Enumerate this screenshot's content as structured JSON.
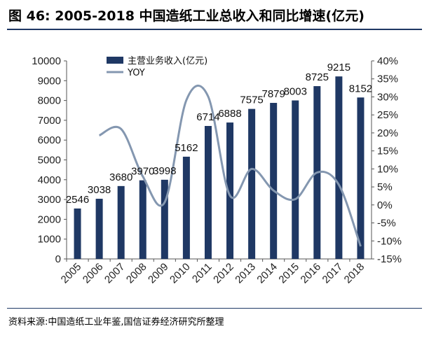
{
  "page": {
    "title": "图 46: 2005-2018 中国造纸工业总收入和同比增速(亿元)",
    "source": "资料来源:中国造纸工业年鉴,国信证券经济研究所整理"
  },
  "chart_data": {
    "type": "bar",
    "title": "图 46: 2005-2018 中国造纸工业总收入和同比增速(亿元)",
    "categories": [
      "2005",
      "2006",
      "2007",
      "2008",
      "2009",
      "2010",
      "2011",
      "2012",
      "2013",
      "2014",
      "2015",
      "2016",
      "2017",
      "2018"
    ],
    "series": [
      {
        "name": "主营业务收入(亿元)",
        "type": "bar",
        "axis": "left",
        "values": [
          2546,
          3038,
          3680,
          3970,
          3998,
          5162,
          6714,
          6888,
          7575,
          7879,
          8003,
          8725,
          9215,
          8152
        ],
        "color": "#1f3864"
      },
      {
        "name": "YOY",
        "type": "line",
        "axis": "right",
        "values": [
          null,
          19.3,
          21.1,
          7.9,
          0.7,
          29.1,
          30.1,
          2.6,
          10.0,
          4.0,
          1.6,
          9.0,
          5.6,
          -11.5
        ],
        "color": "#8497b0"
      }
    ],
    "y_left": {
      "ylim": [
        0,
        10000
      ],
      "ticks": [
        "0",
        "1000",
        "2000",
        "3000",
        "4000",
        "5000",
        "6000",
        "7000",
        "8000",
        "9000",
        "10000"
      ]
    },
    "y_right": {
      "ylim": [
        -15,
        40
      ],
      "ticks": [
        "-15%",
        "-10%",
        "-5%",
        "0%",
        "5%",
        "10%",
        "15%",
        "20%",
        "25%",
        "30%",
        "35%",
        "40%"
      ]
    },
    "grid": false,
    "legend": "top-left"
  }
}
